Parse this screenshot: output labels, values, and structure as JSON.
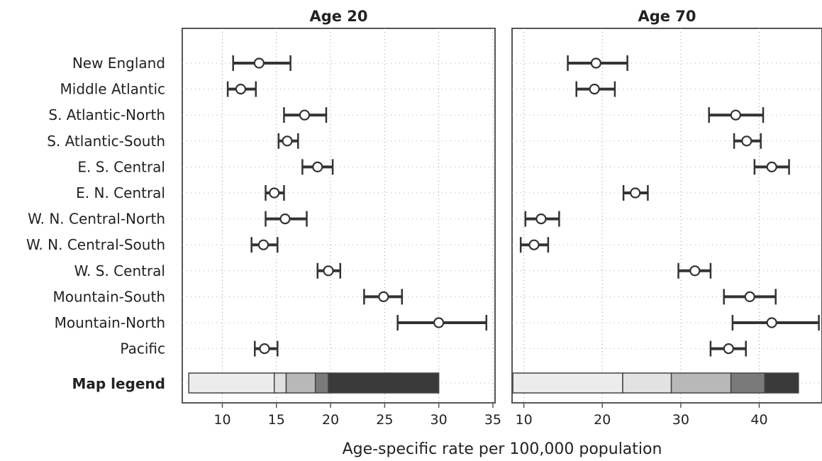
{
  "chart_data": {
    "type": "dot-interval",
    "row_labels": [
      "New England",
      "Middle Atlantic",
      "S. Atlantic-North",
      "S. Atlantic-South",
      "E. S. Central",
      "E. N. Central",
      "W. N. Central-North",
      "W. N. Central-South",
      "W. S. Central",
      "Mountain-South",
      "Mountain-North",
      "Pacific"
    ],
    "legend_label": "Map legend",
    "xlabel": "Age-specific rate per 100,000 population",
    "grid": true,
    "panels": [
      {
        "title": "Age 20",
        "xlim": [
          6.3,
          35.2
        ],
        "xticks": [
          10,
          15,
          20,
          25,
          30,
          35
        ],
        "points": [
          {
            "est": 13.4,
            "lo": 11.0,
            "hi": 16.3
          },
          {
            "est": 11.7,
            "lo": 10.5,
            "hi": 13.1
          },
          {
            "est": 17.6,
            "lo": 15.7,
            "hi": 19.6
          },
          {
            "est": 16.0,
            "lo": 15.2,
            "hi": 17.0
          },
          {
            "est": 18.8,
            "lo": 17.4,
            "hi": 20.2
          },
          {
            "est": 14.8,
            "lo": 14.0,
            "hi": 15.7
          },
          {
            "est": 15.8,
            "lo": 14.0,
            "hi": 17.8
          },
          {
            "est": 13.8,
            "lo": 12.7,
            "hi": 15.1
          },
          {
            "est": 19.8,
            "lo": 18.8,
            "hi": 20.9
          },
          {
            "est": 24.9,
            "lo": 23.1,
            "hi": 26.6
          },
          {
            "est": 30.0,
            "lo": 26.2,
            "hi": 34.4
          },
          {
            "est": 13.9,
            "lo": 13.0,
            "hi": 15.1
          }
        ],
        "legend_segments": [
          {
            "from": 6.9,
            "to": 14.8,
            "color": "#ececec"
          },
          {
            "from": 14.8,
            "to": 15.9,
            "color": "#e0e0e0"
          },
          {
            "from": 15.9,
            "to": 18.6,
            "color": "#b8b8b8"
          },
          {
            "from": 18.6,
            "to": 19.8,
            "color": "#7a7a7a"
          },
          {
            "from": 19.8,
            "to": 30.0,
            "color": "#3a3a3a"
          }
        ]
      },
      {
        "title": "Age 70",
        "xlim": [
          8.5,
          48.0
        ],
        "xticks": [
          10,
          20,
          30,
          40
        ],
        "points": [
          {
            "est": 19.2,
            "lo": 15.6,
            "hi": 23.2
          },
          {
            "est": 19.0,
            "lo": 16.7,
            "hi": 21.6
          },
          {
            "est": 37.0,
            "lo": 33.6,
            "hi": 40.5
          },
          {
            "est": 38.4,
            "lo": 36.8,
            "hi": 40.2
          },
          {
            "est": 41.6,
            "lo": 39.4,
            "hi": 43.8
          },
          {
            "est": 24.2,
            "lo": 22.7,
            "hi": 25.8
          },
          {
            "est": 12.2,
            "lo": 10.2,
            "hi": 14.5
          },
          {
            "est": 11.3,
            "lo": 9.6,
            "hi": 13.1
          },
          {
            "est": 31.8,
            "lo": 29.7,
            "hi": 33.8
          },
          {
            "est": 38.8,
            "lo": 35.5,
            "hi": 42.1
          },
          {
            "est": 41.6,
            "lo": 36.6,
            "hi": 47.6
          },
          {
            "est": 36.1,
            "lo": 33.8,
            "hi": 38.3
          }
        ],
        "legend_segments": [
          {
            "from": 8.6,
            "to": 22.6,
            "color": "#ececec"
          },
          {
            "from": 22.6,
            "to": 28.8,
            "color": "#e2e2e2"
          },
          {
            "from": 28.8,
            "to": 36.4,
            "color": "#b8b8b8"
          },
          {
            "from": 36.4,
            "to": 40.7,
            "color": "#7a7a7a"
          },
          {
            "from": 40.7,
            "to": 45.0,
            "color": "#3a3a3a"
          }
        ]
      }
    ]
  }
}
